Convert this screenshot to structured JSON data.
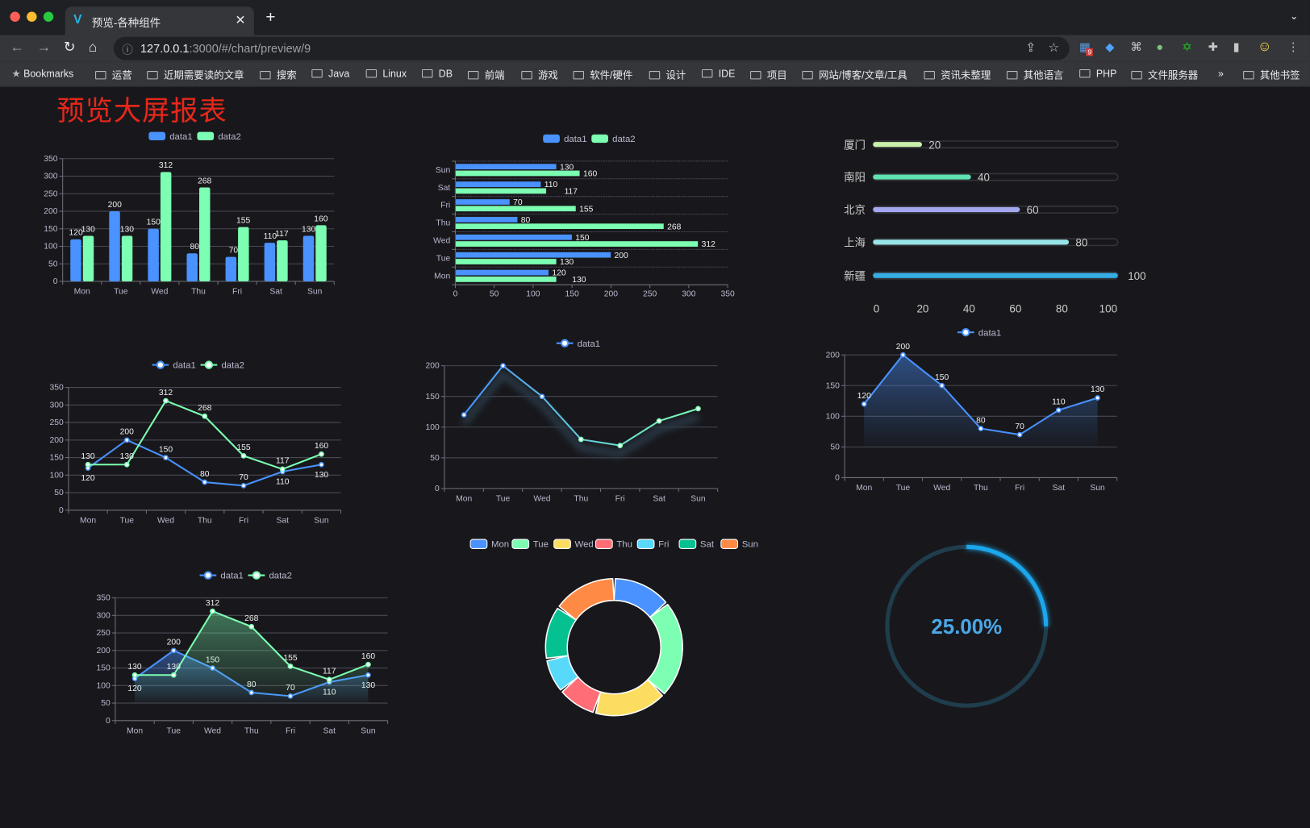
{
  "browser": {
    "tab_title": "预览-各种组件",
    "url_host": "127.0.0.1",
    "url_path": ":3000/#/chart/preview/9",
    "extension_badge": "9",
    "bookmarks": [
      "Bookmarks",
      "运营",
      "近期需要读的文章",
      "搜索",
      "Java",
      "Linux",
      "DB",
      "前端",
      "游戏",
      "软件/硬件",
      "设计",
      "IDE",
      "项目",
      "网站/博客/文章/工具",
      "资讯未整理",
      "其他语言",
      "PHP",
      "文件服务器"
    ],
    "overflow": "»",
    "other_bookmarks": "其他书签"
  },
  "page": {
    "title": "预览大屏报表",
    "background": "#18181c",
    "title_color": "#e8271a"
  },
  "colors": {
    "blue": "#4992ff",
    "green": "#7cffb2",
    "yellow": "#fddd60",
    "red": "#ff6e76",
    "cyan": "#58d9f9",
    "teal": "#05c091",
    "orange": "#ff8a45"
  },
  "chart_data": [
    {
      "type": "bar",
      "categories": [
        "Mon",
        "Tue",
        "Wed",
        "Thu",
        "Fri",
        "Sat",
        "Sun"
      ],
      "series": [
        {
          "name": "data1",
          "values": [
            120,
            200,
            150,
            80,
            70,
            110,
            130
          ]
        },
        {
          "name": "data2",
          "values": [
            130,
            130,
            312,
            268,
            155,
            117,
            160
          ]
        }
      ],
      "ylim": [
        0,
        350
      ],
      "yticks": [
        "0",
        "50",
        "100",
        "150",
        "200",
        "250",
        "300",
        "350"
      ],
      "grid": true,
      "legend": "top"
    },
    {
      "type": "bar",
      "orientation": "horizontal",
      "categories": [
        "Mon",
        "Tue",
        "Wed",
        "Thu",
        "Fri",
        "Sat",
        "Sun"
      ],
      "series": [
        {
          "name": "data1",
          "values": [
            120,
            200,
            150,
            80,
            70,
            110,
            130
          ]
        },
        {
          "name": "data2",
          "values": [
            130,
            130,
            312,
            268,
            155,
            117,
            160
          ]
        }
      ],
      "xlim": [
        0,
        350
      ],
      "xticks": [
        "0",
        "50",
        "100",
        "150",
        "200",
        "250",
        "300",
        "350"
      ],
      "grid": true,
      "legend": "top"
    },
    {
      "type": "bar",
      "orientation": "horizontal",
      "subtype": "progress",
      "categories": [
        "厦门",
        "南阳",
        "北京",
        "上海",
        "新疆"
      ],
      "values": [
        20,
        40,
        60,
        80,
        100
      ],
      "labels": [
        "20",
        "40",
        "60",
        "80",
        "100"
      ],
      "colors": [
        "#c9f0a8",
        "#5fe3b1",
        "#a3a8ee",
        "#97e5e8",
        "#35ace2"
      ],
      "xlim": [
        0,
        100
      ],
      "xticks": [
        "0",
        "20",
        "40",
        "60",
        "80",
        "100"
      ]
    },
    {
      "type": "line",
      "categories": [
        "Mon",
        "Tue",
        "Wed",
        "Thu",
        "Fri",
        "Sat",
        "Sun"
      ],
      "series": [
        {
          "name": "data1",
          "values": [
            120,
            200,
            150,
            80,
            70,
            110,
            130
          ]
        },
        {
          "name": "data2",
          "values": [
            130,
            130,
            312,
            268,
            155,
            117,
            160
          ]
        }
      ],
      "ylim": [
        0,
        350
      ],
      "yticks": [
        "0",
        "50",
        "100",
        "150",
        "200",
        "250",
        "300",
        "350"
      ],
      "grid": true,
      "legend": "top"
    },
    {
      "type": "line",
      "categories": [
        "Mon",
        "Tue",
        "Wed",
        "Thu",
        "Fri",
        "Sat",
        "Sun"
      ],
      "series": [
        {
          "name": "data1",
          "values": [
            120,
            200,
            150,
            80,
            70,
            110,
            130
          ]
        }
      ],
      "ylim": [
        0,
        200
      ],
      "yticks": [
        "0",
        "50",
        "100",
        "150",
        "200"
      ],
      "grid": true,
      "legend": "top"
    },
    {
      "type": "area",
      "categories": [
        "Mon",
        "Tue",
        "Wed",
        "Thu",
        "Fri",
        "Sat",
        "Sun"
      ],
      "series": [
        {
          "name": "data1",
          "values": [
            120,
            200,
            150,
            80,
            70,
            110,
            130
          ]
        }
      ],
      "ylim": [
        0,
        200
      ],
      "yticks": [
        "0",
        "50",
        "100",
        "150",
        "200"
      ],
      "grid": true,
      "legend": "top"
    },
    {
      "type": "area",
      "categories": [
        "Mon",
        "Tue",
        "Wed",
        "Thu",
        "Fri",
        "Sat",
        "Sun"
      ],
      "series": [
        {
          "name": "data1",
          "values": [
            120,
            200,
            150,
            80,
            70,
            110,
            130
          ]
        },
        {
          "name": "data2",
          "values": [
            130,
            130,
            312,
            268,
            155,
            117,
            160
          ]
        }
      ],
      "ylim": [
        0,
        350
      ],
      "yticks": [
        "0",
        "50",
        "100",
        "150",
        "200",
        "250",
        "300",
        "350"
      ],
      "grid": true,
      "legend": "top"
    },
    {
      "type": "pie",
      "subtype": "donut",
      "categories": [
        "Mon",
        "Tue",
        "Wed",
        "Thu",
        "Fri",
        "Sat",
        "Sun"
      ],
      "values": [
        120,
        200,
        150,
        80,
        70,
        110,
        130
      ],
      "legend": "top"
    },
    {
      "type": "gauge",
      "subtype": "ring-progress",
      "value": 0.25,
      "label": "25.00%",
      "color": "#1aa6ec",
      "track_color": "#1f3d4d"
    }
  ]
}
